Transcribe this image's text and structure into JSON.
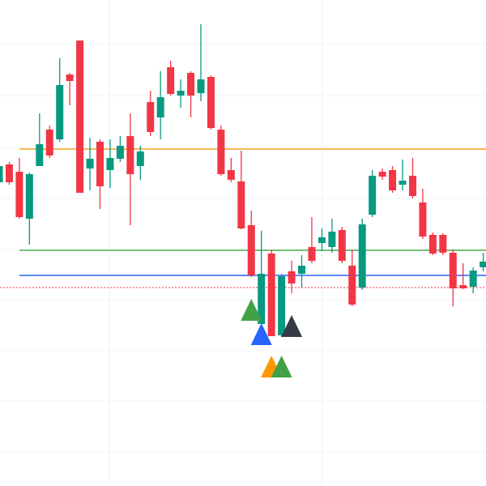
{
  "chart_data": {
    "type": "candlestick",
    "ylim": [
      0,
      600
    ],
    "up_color": "#089981",
    "down_color": "#f23645",
    "open": [
      375,
      397,
      388,
      330,
      395,
      440,
      428,
      508,
      550,
      392,
      425,
      390,
      404,
      432,
      395,
      474,
      455,
      517,
      482,
      510,
      485,
      505,
      440,
      390,
      376,
      322,
      200,
      287,
      186,
      265,
      262,
      295,
      300,
      295,
      316,
      272,
      245,
      335,
      388,
      390,
      372,
      383,
      350,
      310,
      310,
      288,
      248,
      246,
      270
    ],
    "high": [
      397,
      400,
      405,
      387,
      460,
      445,
      528,
      510,
      550,
      430,
      428,
      428,
      432,
      460,
      420,
      488,
      512,
      525,
      502,
      512,
      570,
      507,
      445,
      405,
      414,
      340,
      315,
      292,
      262,
      278,
      285,
      332,
      318,
      330,
      320,
      292,
      330,
      390,
      392,
      395,
      403,
      405,
      367,
      313,
      312,
      292,
      275,
      270,
      288
    ],
    "low": [
      373,
      372,
      330,
      298,
      395,
      405,
      425,
      470,
      362,
      365,
      342,
      368,
      400,
      322,
      378,
      432,
      428,
      482,
      467,
      455,
      475,
      440,
      383,
      375,
      317,
      258,
      200,
      185,
      184,
      238,
      245,
      275,
      290,
      288,
      275,
      222,
      242,
      332,
      378,
      362,
      365,
      355,
      305,
      285,
      285,
      222,
      243,
      238,
      265
    ],
    "close": [
      395,
      375,
      332,
      385,
      422,
      408,
      495,
      500,
      362,
      404,
      370,
      405,
      420,
      385,
      413,
      437,
      480,
      484,
      488,
      482,
      502,
      442,
      385,
      378,
      318,
      260,
      262,
      185,
      259,
      250,
      272,
      278,
      307,
      314,
      278,
      224,
      323,
      383,
      382,
      365,
      377,
      358,
      308,
      287,
      288,
      244,
      244,
      266,
      277
    ],
    "levels": [
      {
        "price": 416,
        "color": "#f7a21b",
        "style": "solid"
      },
      {
        "price": 291,
        "color": "#4caf50",
        "style": "solid"
      },
      {
        "price": 260,
        "color": "#2962ff",
        "style": "solid"
      },
      {
        "price": 245,
        "color": "#f23645",
        "style": "dotted"
      }
    ],
    "markers": [
      {
        "index": 25,
        "price": 217,
        "color": "#43a047"
      },
      {
        "index": 26,
        "price": 187,
        "color": "#2962ff"
      },
      {
        "index": 29,
        "price": 197,
        "color": "#363a45"
      },
      {
        "index": 27,
        "price": 147,
        "color": "#ff9800"
      },
      {
        "index": 28,
        "price": 147,
        "color": "#43a047"
      }
    ]
  }
}
